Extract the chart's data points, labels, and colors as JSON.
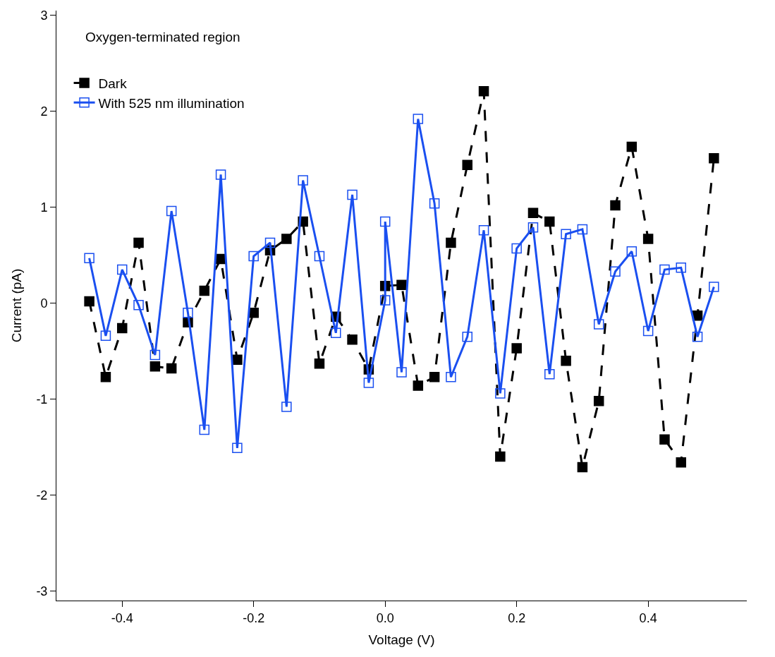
{
  "chart_data": {
    "type": "line",
    "xlabel": "Voltage (V)",
    "ylabel": "Current (pA)",
    "annotations": [
      "Oxygen-terminated region"
    ],
    "xlim": [
      -0.5,
      0.55
    ],
    "ylim": [
      -3.1,
      3.05
    ],
    "xticks": [
      {
        "value": -0.4,
        "label": "-0.4"
      },
      {
        "value": -0.2,
        "label": "-0.2"
      },
      {
        "value": 0,
        "label": "0.0"
      },
      {
        "value": 0.2,
        "label": "0.2"
      },
      {
        "value": 0.4,
        "label": "0.4"
      }
    ],
    "yticks": [
      -3,
      -2,
      -1,
      0,
      1,
      2,
      3
    ],
    "legend": "top left",
    "series": [
      {
        "name": "Dark",
        "color": "#000000",
        "marker": "square",
        "line_style": "dashed",
        "x": [
          -0.45,
          -0.425,
          -0.4,
          -0.375,
          -0.35,
          -0.325,
          -0.3,
          -0.275,
          -0.25,
          -0.225,
          -0.2,
          -0.175,
          -0.15,
          -0.125,
          -0.1,
          -0.075,
          -0.05,
          -0.025,
          0.0,
          0.025,
          0.05,
          0.075,
          0.1,
          0.125,
          0.15,
          0.175,
          0.2,
          0.225,
          0.25,
          0.275,
          0.3,
          0.325,
          0.35,
          0.375,
          0.4,
          0.425,
          0.45,
          0.475,
          0.5
        ],
        "values": [
          0.02,
          -0.77,
          -0.26,
          0.63,
          -0.66,
          -0.68,
          -0.2,
          0.13,
          0.46,
          -0.59,
          -0.1,
          0.55,
          0.67,
          0.85,
          -0.63,
          -0.14,
          -0.38,
          -0.69,
          0.18,
          0.19,
          -0.86,
          -0.77,
          0.63,
          1.44,
          2.21,
          -1.6,
          -0.47,
          0.94,
          0.85,
          -0.6,
          -1.71,
          -1.02,
          1.02,
          1.63,
          0.67,
          -1.42,
          -1.66,
          -0.13,
          1.51
        ]
      },
      {
        "name": "With 525 nm illumination",
        "color": "#1a4ff0",
        "marker": "square-open",
        "line_style": "solid",
        "x": [
          -0.45,
          -0.425,
          -0.4,
          -0.375,
          -0.35,
          -0.325,
          -0.3,
          -0.275,
          -0.25,
          -0.225,
          -0.2,
          -0.175,
          -0.15,
          -0.125,
          -0.1,
          -0.075,
          -0.05,
          -0.025,
          0.0,
          0.0,
          0.025,
          0.05,
          0.075,
          0.1,
          0.125,
          0.15,
          0.175,
          0.2,
          0.225,
          0.25,
          0.275,
          0.3,
          0.325,
          0.35,
          0.375,
          0.4,
          0.425,
          0.45,
          0.475,
          0.5
        ],
        "values": [
          0.47,
          -0.34,
          0.35,
          -0.02,
          -0.54,
          0.96,
          -0.1,
          -1.32,
          1.34,
          -1.51,
          0.49,
          0.63,
          -1.08,
          1.28,
          0.49,
          -0.31,
          1.13,
          -0.83,
          0.03,
          0.85,
          -0.72,
          1.92,
          1.04,
          -0.77,
          -0.35,
          0.76,
          -0.94,
          0.57,
          0.79,
          -0.74,
          0.72,
          0.77,
          -0.22,
          0.33,
          0.54,
          -0.29,
          0.35,
          0.37,
          -0.35,
          0.17
        ]
      }
    ]
  }
}
